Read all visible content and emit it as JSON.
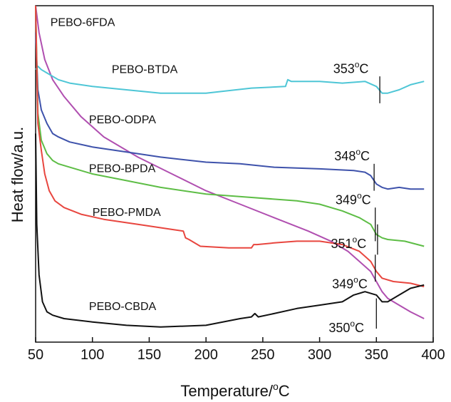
{
  "chart_data": {
    "type": "line",
    "xlabel": "Temperature/",
    "xlabel_unit_sup": "o",
    "xlabel_unit": "C",
    "ylabel": "Heat flow/a.u.",
    "xlim": [
      50,
      400
    ],
    "ylim": [
      0,
      100
    ],
    "x_ticks": [
      50,
      100,
      150,
      200,
      250,
      300,
      350,
      400
    ],
    "grid": false,
    "legend": "none",
    "series": [
      {
        "name": "PEBO-6FDA",
        "color": "#b04fb0",
        "x": [
          50,
          53,
          58,
          65,
          75,
          90,
          110,
          140,
          170,
          200,
          230,
          260,
          290,
          310,
          325,
          335,
          345,
          350,
          355,
          360,
          370,
          380,
          392
        ],
        "y": [
          100,
          92,
          84,
          78,
          73,
          67,
          61,
          55,
          50,
          45,
          41,
          37,
          33,
          30,
          27,
          24,
          21,
          18,
          15,
          13,
          11,
          9,
          7
        ]
      },
      {
        "name": "PEBO-BTDA",
        "color": "#4ec6d6",
        "x": [
          50,
          52,
          55,
          60,
          70,
          80,
          100,
          130,
          160,
          200,
          240,
          270,
          272,
          275,
          280,
          300,
          320,
          340,
          350,
          355,
          360,
          370,
          380,
          392
        ],
        "y": [
          81,
          82,
          81,
          80,
          78,
          77,
          76,
          75,
          74,
          74,
          75.5,
          76,
          78,
          77.5,
          77.5,
          77.5,
          77,
          77.5,
          76,
          74,
          74,
          75,
          76.5,
          77.5
        ]
      },
      {
        "name": "PEBO-ODPA",
        "color": "#3e52ab",
        "x": [
          50,
          52,
          55,
          60,
          65,
          70,
          80,
          100,
          130,
          160,
          200,
          230,
          260,
          300,
          330,
          340,
          345,
          350,
          355,
          360,
          370,
          380,
          392
        ],
        "y": [
          92,
          75,
          69,
          65,
          62,
          61,
          59.5,
          58,
          56.5,
          55,
          53.5,
          53,
          52,
          51.5,
          51,
          50.5,
          49.5,
          47,
          46,
          45.5,
          46,
          45.5,
          45.5
        ]
      },
      {
        "name": "PEBO-BPDA",
        "color": "#5dbd45",
        "x": [
          50,
          52,
          55,
          60,
          65,
          70,
          80,
          100,
          130,
          160,
          200,
          240,
          280,
          300,
          320,
          335,
          345,
          350,
          355,
          360,
          375,
          392
        ],
        "y": [
          100,
          68,
          60,
          56,
          54,
          53,
          52,
          50,
          48,
          46,
          44,
          43,
          42,
          41,
          39,
          37,
          35,
          32,
          31,
          30.5,
          30,
          28.5
        ]
      },
      {
        "name": "PEBO-PMDA",
        "color": "#e8463f",
        "x": [
          50,
          52,
          55,
          58,
          62,
          67,
          75,
          90,
          110,
          140,
          170,
          180,
          182,
          185,
          195,
          220,
          240,
          242,
          245,
          260,
          280,
          300,
          320,
          335,
          345,
          350,
          355,
          365,
          380,
          392
        ],
        "y": [
          100,
          65,
          57,
          50,
          45,
          42,
          40,
          38,
          36.5,
          35,
          33.5,
          33,
          31,
          30.5,
          28.5,
          28,
          28,
          29,
          29,
          29.5,
          30,
          30,
          29,
          27,
          24,
          21,
          19,
          18,
          17.5,
          16.5
        ]
      },
      {
        "name": "PEBO-CBDA",
        "color": "#111111",
        "x": [
          50,
          51,
          53,
          56,
          60,
          65,
          75,
          100,
          130,
          160,
          200,
          230,
          240,
          243,
          246,
          260,
          280,
          300,
          320,
          330,
          340,
          350,
          355,
          360,
          370,
          380,
          392
        ],
        "y": [
          62,
          35,
          20,
          12,
          9,
          8,
          7,
          6,
          5,
          4.5,
          5,
          7,
          7.5,
          8.5,
          7.5,
          8.5,
          10,
          11,
          12,
          14,
          15,
          14,
          12,
          12,
          14,
          16,
          17
        ]
      }
    ],
    "series_labels": [
      {
        "text": "PEBO-6FDA",
        "x": 63,
        "y": 94
      },
      {
        "text": "PEBO-BTDA",
        "x": 117,
        "y": 80
      },
      {
        "text": "PEBO-ODPA",
        "x": 97,
        "y": 65
      },
      {
        "text": "PEBO-BPDA",
        "x": 97,
        "y": 50.5
      },
      {
        "text": "PEBO-PMDA",
        "x": 100,
        "y": 37.5
      },
      {
        "text": "PEBO-CBDA",
        "x": 97,
        "y": 9.5
      }
    ],
    "annotations": [
      {
        "value": "353",
        "sup": "o",
        "unit": "C",
        "x": 353,
        "label_x": 312,
        "label_y": 80,
        "line_y": [
          71,
          79
        ]
      },
      {
        "value": "348",
        "sup": "o",
        "unit": "C",
        "x": 348,
        "label_x": 313,
        "label_y": 54,
        "line_y": [
          45,
          53
        ]
      },
      {
        "value": "349",
        "sup": "o",
        "unit": "C",
        "x": 349,
        "label_x": 314,
        "label_y": 41,
        "line_y": [
          30,
          40
        ]
      },
      {
        "value": "351",
        "sup": "o",
        "unit": "C",
        "x": 351,
        "label_x": 310,
        "label_y": 28,
        "line_y": [
          26,
          35
        ]
      },
      {
        "value": "349",
        "sup": "o",
        "unit": "C",
        "x": 349,
        "label_x": 311,
        "label_y": 16,
        "line_y": [
          18,
          26
        ]
      },
      {
        "value": "350",
        "sup": "o",
        "unit": "C",
        "x": 350,
        "label_x": 308,
        "label_y": 3,
        "line_y": [
          4,
          13
        ]
      }
    ]
  }
}
